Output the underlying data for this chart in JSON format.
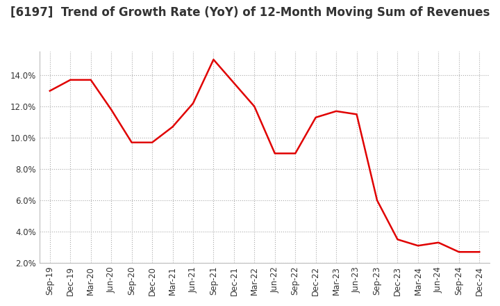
{
  "title": "[6197]  Trend of Growth Rate (YoY) of 12-Month Moving Sum of Revenues",
  "title_fontsize": 12,
  "line_color": "#e00000",
  "background_color": "#ffffff",
  "grid_color": "#aaaaaa",
  "ylim": [
    0.02,
    0.155
  ],
  "yticks": [
    0.02,
    0.04,
    0.06,
    0.08,
    0.1,
    0.12,
    0.14
  ],
  "x_labels": [
    "Sep-19",
    "Dec-19",
    "Mar-20",
    "Jun-20",
    "Sep-20",
    "Dec-20",
    "Mar-21",
    "Jun-21",
    "Sep-21",
    "Dec-21",
    "Mar-22",
    "Jun-22",
    "Sep-22",
    "Dec-22",
    "Mar-23",
    "Jun-23",
    "Sep-23",
    "Dec-23",
    "Mar-24",
    "Jun-24",
    "Sep-24",
    "Dec-24"
  ],
  "y_values": [
    0.13,
    0.137,
    0.137,
    0.118,
    0.097,
    0.097,
    0.107,
    0.122,
    0.15,
    0.135,
    0.12,
    0.09,
    0.09,
    0.113,
    0.117,
    0.115,
    0.06,
    0.035,
    0.031,
    0.033,
    0.027,
    0.027
  ]
}
